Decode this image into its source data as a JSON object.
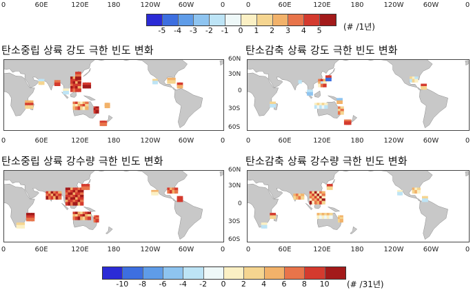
{
  "colorbar_top": {
    "ticks": [
      "-5",
      "-4",
      "-3",
      "-2",
      "-1",
      "0",
      "1",
      "2",
      "3",
      "4",
      "5"
    ],
    "unit": "(# /1년)"
  },
  "colorbar_bottom": {
    "ticks": [
      "-10",
      "-8",
      "-6",
      "-4",
      "-2",
      "0",
      "2",
      "4",
      "6",
      "8",
      "10"
    ],
    "unit": "(# /31년)"
  },
  "lon_labels": [
    "0",
    "60E",
    "120E",
    "180",
    "120W",
    "60W",
    "0"
  ],
  "lat_labels": [
    "60N",
    "30N",
    "0",
    "30S",
    "60S"
  ],
  "panels": {
    "tl": {
      "title": "탄소중립 상륙 강도 극한 빈도 변화"
    },
    "tr": {
      "title": "탄소감축 상륙 강도 극한 빈도 변화"
    },
    "bl": {
      "title": "탄소중립 상륙 강수량 극한 빈도 변화"
    },
    "br": {
      "title": "탄소감축 상륙 강수량 극한 빈도 변화"
    }
  },
  "colors": {
    "land": "#c8c8c8",
    "ocean": "#ffffff",
    "scale": [
      "#2b2bd6",
      "#3d6fe0",
      "#5f9ce8",
      "#8ec4f0",
      "#bde4f6",
      "#eef8f8",
      "#fbf0c4",
      "#f5d590",
      "#f2b26a",
      "#e8744a",
      "#d43a2e",
      "#a31a1a"
    ]
  }
}
